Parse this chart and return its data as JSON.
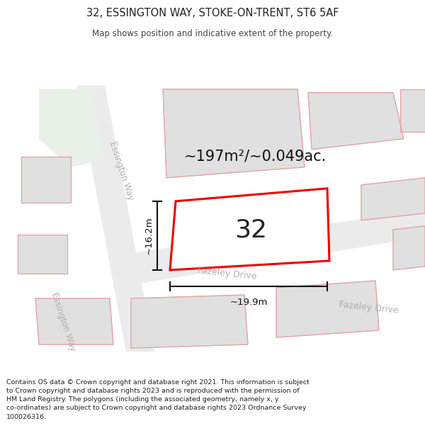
{
  "title": "32, ESSINGTON WAY, STOKE-ON-TRENT, ST6 5AF",
  "subtitle": "Map shows position and indicative extent of the property.",
  "footer_line1": "Contains OS data © Crown copyright and database right 2021. This information is subject",
  "footer_line2": "to Crown copyright and database rights 2023 and is reproduced with the permission of",
  "footer_line3": "HM Land Registry. The polygons (including the associated geometry, namely x, y",
  "footer_line4": "co-ordinates) are subject to Crown copyright and database rights 2023 Ordnance Survey",
  "footer_line5": "100026316.",
  "area_label": "~197m²/~0.049ac.",
  "width_label": "~19.9m",
  "height_label": "~16.2m",
  "number_label": "32",
  "road_label_1": "Essington Way",
  "road_label_2": "Fazeley Drive",
  "road_label_3": "Essington Way",
  "road_label_4": "Fazeley Drive",
  "bg_color": "#ffffff",
  "map_bg": "#ffffff",
  "road_fill": "#ebebeb",
  "bldg_fill": "#e0e0e0",
  "bldg_edge": "#d0d0d0",
  "green_fill": "#e8f0e8",
  "prop_stroke": "#ee0000",
  "prop_fill": "#ffffff",
  "dim_color": "#111111",
  "road_label_color": "#b0b0b0",
  "text_color": "#222222",
  "pink_edge": "#e8a0a0"
}
